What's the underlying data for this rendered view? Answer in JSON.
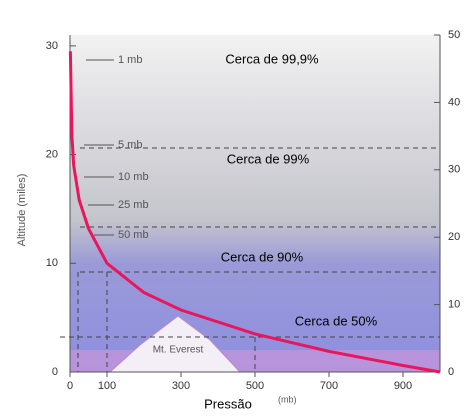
{
  "chart_data": {
    "type": "line",
    "x_label": "Pressão",
    "x_unit": "(mb)",
    "y_label": "Altitude (miles)",
    "x": [
      1,
      5,
      10,
      25,
      50,
      100,
      200,
      300,
      500,
      700,
      900,
      1000
    ],
    "series": [
      {
        "name": "Pressão",
        "color": "#e8175d",
        "values": [
          29.5,
          21.8,
          19,
          15.8,
          13.2,
          10,
          7.3,
          5.7,
          3.5,
          1.9,
          0.6,
          0
        ]
      }
    ],
    "xlim": [
      0,
      1000
    ],
    "xticks": [
      0,
      100,
      300,
      500,
      700,
      900
    ],
    "ylim": [
      0,
      31
    ],
    "yticks": [
      0,
      10,
      20,
      30
    ],
    "y2lim": [
      0,
      50
    ],
    "y2ticks": [
      0,
      10,
      20,
      30,
      40,
      50
    ],
    "annotations": [
      "1 mb",
      "5 mb",
      "10 mb",
      "25 mb",
      "50 mb",
      "Cerca de 99,9%",
      "Cerca de 99%",
      "Cerca de 90%",
      "Cerca de 50%",
      "Mt. Everest"
    ]
  }
}
